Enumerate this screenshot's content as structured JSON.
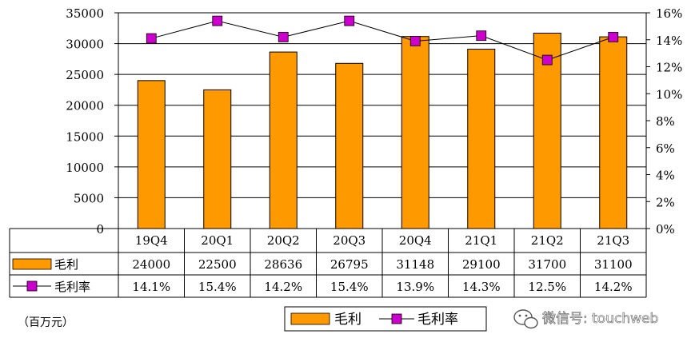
{
  "chart_data": {
    "type": "bar",
    "categories": [
      "19Q4",
      "20Q1",
      "20Q2",
      "20Q3",
      "20Q4",
      "21Q1",
      "21Q2",
      "21Q3"
    ],
    "series": [
      {
        "name": "毛利",
        "type": "bar",
        "axis": "left",
        "color": "#FF9900",
        "values": [
          24000,
          22500,
          28636,
          26795,
          31148,
          29100,
          31700,
          31100
        ],
        "labels": [
          "24000",
          "22500",
          "28636",
          "26795",
          "31148",
          "29100",
          "31700",
          "31100"
        ]
      },
      {
        "name": "毛利率",
        "type": "line",
        "axis": "right",
        "color": "#CC00CC",
        "values": [
          14.1,
          15.4,
          14.2,
          15.4,
          13.9,
          14.3,
          12.5,
          14.2
        ],
        "labels": [
          "14.1%",
          "15.4%",
          "14.2%",
          "15.4%",
          "13.9%",
          "14.3%",
          "12.5%",
          "14.2%"
        ]
      }
    ],
    "y_left": {
      "range": [
        0,
        35000
      ],
      "ticks": [
        "0",
        "5000",
        "10000",
        "15000",
        "20000",
        "25000",
        "30000",
        "35000"
      ]
    },
    "y_right": {
      "range": [
        0,
        16
      ],
      "ticks": [
        "0%",
        "2%",
        "4%",
        "6%",
        "8%",
        "10%",
        "12%",
        "14%",
        "16%"
      ]
    },
    "gridlines": true,
    "data_table": true,
    "legend": {
      "position": "bottom",
      "items": [
        "毛利",
        "毛利率"
      ]
    },
    "unit_note": "（百万元）"
  },
  "watermark": {
    "text": "微信号: touchweb",
    "icon": "wechat-icon"
  }
}
